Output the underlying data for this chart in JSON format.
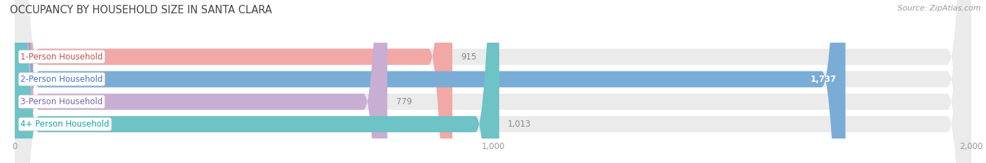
{
  "title": "OCCUPANCY BY HOUSEHOLD SIZE IN SANTA CLARA",
  "source": "Source: ZipAtlas.com",
  "categories": [
    "1-Person Household",
    "2-Person Household",
    "3-Person Household",
    "4+ Person Household"
  ],
  "values": [
    915,
    1737,
    779,
    1013
  ],
  "bar_colors": [
    "#f2a8a6",
    "#7aadd6",
    "#c8aed3",
    "#6dc3c5"
  ],
  "label_colors": [
    "#c0504d",
    "#4472c4",
    "#7f5fa6",
    "#17a2aa"
  ],
  "value_color_inside": "#ffffff",
  "value_color_outside": "#888888",
  "xlim": [
    0,
    2000
  ],
  "xticks": [
    0,
    1000,
    2000
  ],
  "xticklabels": [
    "0",
    "1,000",
    "2,000"
  ],
  "bar_height": 0.72,
  "bar_gap": 0.28,
  "figsize": [
    14.06,
    2.33
  ],
  "dpi": 100,
  "bg_color": "#ffffff",
  "bar_bg_color": "#ebebeb",
  "title_fontsize": 10.5,
  "source_fontsize": 8,
  "label_fontsize": 8.5,
  "value_fontsize": 8.5,
  "tick_fontsize": 8.5,
  "inside_value_threshold": 1700
}
